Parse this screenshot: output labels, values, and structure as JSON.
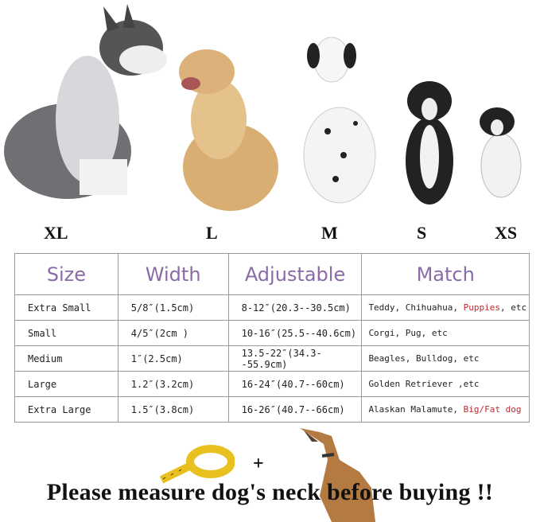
{
  "dogs": [
    {
      "size": "XL",
      "breed_icon": "husky-photo"
    },
    {
      "size": "L",
      "breed_icon": "golden-retriever-photo"
    },
    {
      "size": "M",
      "breed_icon": "dalmatian-photo"
    },
    {
      "size": "S",
      "breed_icon": "boston-terrier-photo"
    },
    {
      "size": "XS",
      "breed_icon": "chihuahua-photo"
    }
  ],
  "table": {
    "headers": [
      "Size",
      "Width",
      "Adjustable",
      "Match"
    ],
    "rows": [
      {
        "size": "Extra Small",
        "width": "5/8″(1.5cm)",
        "adjustable": "8-12″(20.3--30.5cm)",
        "match": "Teddy, Chihuahua, ",
        "match_red": "Puppies",
        "match_tail": ", etc"
      },
      {
        "size": "Small",
        "width": "4/5″(2cm )",
        "adjustable": "10-16″(25.5--40.6cm)",
        "match": "Corgi, Pug, etc",
        "match_red": "",
        "match_tail": ""
      },
      {
        "size": "Medium",
        "width": "1″(2.5cm)",
        "adjustable": "13.5-22″(34.3--55.9cm)",
        "match": "Beagles, Bulldog, etc",
        "match_red": "",
        "match_tail": ""
      },
      {
        "size": "Large",
        "width": "1.2″(3.2cm)",
        "adjustable": "16-24″(40.7--60cm)",
        "match": "Golden Retriever ,etc",
        "match_red": "",
        "match_tail": ""
      },
      {
        "size": "Extra Large",
        "width": "1.5″(3.8cm)",
        "adjustable": "16-26″(40.7--66cm)",
        "match": "Alaskan Malamute, ",
        "match_red": "Big/Fat dog",
        "match_tail": ""
      }
    ]
  },
  "footer": {
    "plus": "+",
    "text": "Please measure dog's neck before buying !!"
  },
  "colors": {
    "header_text": "#8b6aa8",
    "highlight": "#c0282d",
    "tape": "#e8c020"
  }
}
